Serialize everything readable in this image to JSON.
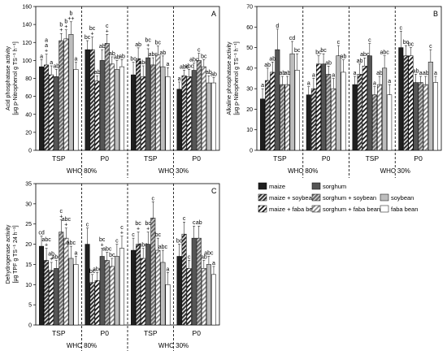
{
  "styles": {
    "maize": "#1f1f1f",
    "sorghum": "#555555",
    "maize_soybean": "#3a3a3a",
    "sorghum_soybean": "#777777",
    "soybean": "#bdbdbd",
    "maize_faba": "#2a2a2a",
    "sorghum_faba": "#8a8a8a",
    "faba": "#ffffff"
  },
  "legend": {
    "entries": [
      "maize",
      "sorghum",
      "maize + soybean",
      "sorghum + soybean",
      "soybean",
      "maize + faba bean",
      "sorghum + faba bean",
      "faba bean"
    ]
  },
  "chart_data": [
    {
      "type": "bar",
      "panel": "A",
      "ylabel_line1": "Acid phosphatase activity",
      "ylabel_line2": "[µg p-Nitrophenol g TS⁻¹ h⁻¹]",
      "ylim": [
        0,
        160
      ],
      "yticks": [
        "0",
        "20",
        "40",
        "60",
        "80",
        "100",
        "120",
        "140",
        "160"
      ],
      "groups": [
        "TSP",
        "P0",
        "TSP",
        "P0"
      ],
      "conditions": [
        "WHC 80%",
        "WHC 30%"
      ],
      "series_order": [
        "maize",
        "maize_soybean",
        "maize_faba",
        "sorghum",
        "sorghum_soybean",
        "sorghum_faba",
        "soybean",
        "faba"
      ],
      "values": [
        [
          93,
          95,
          84,
          82,
          122,
          124,
          129,
          90
        ],
        [
          112,
          112,
          77,
          100,
          119,
          96,
          90,
          93
        ],
        [
          84,
          102,
          82,
          103,
          95,
          106,
          93,
          82
        ],
        [
          68,
          83,
          82,
          89,
          100,
          93,
          75,
          75
        ]
      ],
      "errors": [
        [
          8,
          12,
          10,
          8,
          8,
          10,
          14,
          8
        ],
        [
          10,
          14,
          6,
          12,
          10,
          8,
          10,
          8
        ],
        [
          14,
          12,
          12,
          10,
          8,
          10,
          12,
          10
        ],
        [
          8,
          6,
          8,
          8,
          8,
          8,
          8,
          6
        ]
      ],
      "labels": [
        [
          "a",
          "a\na\n+",
          "a",
          "ab",
          "b\n+",
          "b\n+",
          "b\n++",
          "a"
        ],
        [
          "bc",
          "bc\n+",
          "ab",
          "ab",
          "c\n+",
          "ab",
          "ab",
          "ab"
        ],
        [
          "bc",
          "ab",
          "abc",
          "bc\n+",
          "abc",
          "bc",
          "ab",
          "a"
        ],
        [
          "a",
          "abc",
          "abc",
          "abc",
          "c",
          "bc",
          "ab",
          "ab"
        ]
      ]
    },
    {
      "type": "bar",
      "panel": "B",
      "ylabel_line1": "Alkaline phosphatase activity",
      "ylabel_line2": "[µg p-Nitrophenol g TS⁻¹ h⁻¹]",
      "ylim": [
        0,
        70
      ],
      "yticks": [
        "0",
        "10",
        "20",
        "30",
        "40",
        "50",
        "60",
        "70"
      ],
      "groups": [
        "TSP",
        "P0",
        "TSP",
        "P0"
      ],
      "conditions": [
        "WHC 80%",
        "WHC 30%"
      ],
      "series_order": [
        "maize",
        "maize_soybean",
        "maize_faba",
        "sorghum",
        "sorghum_soybean",
        "sorghum_faba",
        "soybean",
        "faba"
      ],
      "values": [
        [
          25,
          34,
          38,
          49,
          32,
          32,
          47,
          39
        ],
        [
          27,
          30,
          42,
          42,
          37,
          30,
          46,
          38
        ],
        [
          32,
          37,
          41,
          46,
          27,
          32,
          40,
          27
        ],
        [
          50,
          46,
          46,
          33,
          33,
          32,
          43,
          33
        ]
      ],
      "errors": [
        [
          5,
          6,
          5,
          10,
          4,
          4,
          6,
          8
        ],
        [
          4,
          5,
          4,
          5,
          4,
          5,
          5,
          6
        ],
        [
          4,
          5,
          4,
          6,
          4,
          4,
          6,
          5
        ],
        [
          8,
          5,
          4,
          4,
          3,
          4,
          6,
          3
        ]
      ],
      "labels": [
        [
          "a",
          "ab",
          "ab",
          "d",
          "ab",
          "ab",
          "cd",
          "bc"
        ],
        [
          "a",
          "a",
          "bc",
          "bc",
          "ab",
          "a",
          "c",
          "ab"
        ],
        [
          "a",
          "ab",
          "abc",
          "c",
          "a",
          "ab",
          "abc",
          "a"
        ],
        [
          "c",
          "bc",
          "bc",
          "ab",
          "a",
          "ab",
          "c",
          "a"
        ]
      ]
    },
    {
      "type": "bar",
      "panel": "C",
      "ylabel_line1": "Dehydrogenase activity",
      "ylabel_line2": "[µg TPF g TS⁻¹ 24 h⁻¹]",
      "ylim": [
        0,
        35
      ],
      "yticks": [
        "0",
        "5",
        "10",
        "15",
        "20",
        "25",
        "30",
        "35"
      ],
      "groups": [
        "TSP",
        "P0",
        "TSP",
        "P0"
      ],
      "conditions": [
        "WHC 80%",
        "WHC 30%"
      ],
      "series_order": [
        "maize",
        "maize_soybean",
        "maize_faba",
        "sorghum",
        "sorghum_soybean",
        "sorghum_faba",
        "soybean",
        "faba"
      ],
      "values": [
        [
          19.5,
          16,
          13.5,
          14,
          23,
          21.5,
          16.5,
          15
        ],
        [
          20,
          10.5,
          11,
          17,
          16,
          14.5,
          17,
          19
        ],
        [
          18.5,
          20,
          16.5,
          20,
          26.5,
          18.5,
          15.5,
          10
        ],
        [
          17,
          22.5,
          14,
          21.5,
          21.5,
          14,
          15,
          12.5
        ]
      ],
      "errors": [
        [
          2.5,
          3,
          2,
          2,
          3,
          2.5,
          3,
          2
        ],
        [
          4,
          2,
          2,
          2,
          2,
          2,
          3,
          3
        ],
        [
          3,
          3,
          2.5,
          3,
          4,
          3,
          3,
          3
        ],
        [
          3,
          3,
          2,
          3,
          3,
          2,
          2,
          2
        ]
      ],
      "labels": [
        [
          "cd",
          "abc\n+",
          "ab\n+",
          "abc",
          "c\n+",
          "abc\n+",
          "abc",
          "a"
        ],
        [
          "c",
          "bc",
          "abc",
          "bc\n+",
          "abc",
          "bc",
          "c",
          "c\n+"
        ],
        [
          "c",
          "bc\n+",
          "abc",
          "bc\n+",
          "c",
          "bc",
          "abc",
          "a"
        ],
        [
          "bc",
          "c",
          "c",
          "c",
          "ab",
          "ab",
          "abc",
          "a"
        ]
      ]
    }
  ]
}
